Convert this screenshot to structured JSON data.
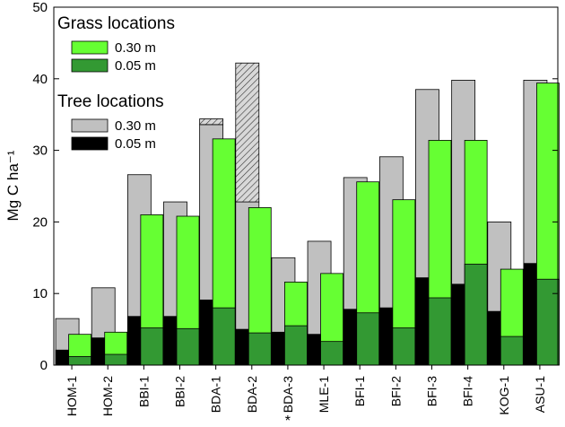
{
  "chart_data": {
    "type": "bar",
    "title": "",
    "xlabel": "",
    "ylabel": "Mg C ha⁻¹",
    "ylim": [
      0,
      50
    ],
    "yticks": [
      0,
      10,
      20,
      30,
      40,
      50
    ],
    "grid": false,
    "legend_placement": "top-left",
    "categories": [
      "HOM-1",
      "HOM-2",
      "BBI-1",
      "BBI-2",
      "BDA-1",
      "BDA-2",
      "BDA-3",
      "MLE-1",
      "BFI-1",
      "BFI-2",
      "BFI-3",
      "BFI-4",
      "KOG-1",
      "ASU-1"
    ],
    "category_notes": [
      "",
      "",
      "",
      "",
      "",
      "",
      "*",
      "",
      "",
      "",
      "",
      "",
      "",
      ""
    ],
    "legend_groups": [
      {
        "title": "Grass locations",
        "items": [
          {
            "label": "0.30 m",
            "color": "#66ff33"
          },
          {
            "label": "0.05 m",
            "color": "#339933"
          }
        ]
      },
      {
        "title": "Tree locations",
        "items": [
          {
            "label": "0.30 m",
            "color": "#c0c0c0"
          },
          {
            "label": "0.05 m",
            "color": "#000000"
          }
        ]
      }
    ],
    "series": [
      {
        "name": "Tree locations 0.30 m",
        "group": "tree",
        "depth": "0.30 m",
        "color": "#c0c0c0",
        "values": [
          6.5,
          10.8,
          26.6,
          22.8,
          33.6,
          22.8,
          15.0,
          17.3,
          26.2,
          29.1,
          38.5,
          39.8,
          20.0,
          39.8
        ]
      },
      {
        "name": "Tree locations 0.05 m",
        "group": "tree",
        "depth": "0.05 m",
        "color": "#000000",
        "values": [
          2.1,
          3.8,
          6.8,
          6.8,
          9.1,
          5.0,
          4.6,
          4.3,
          7.8,
          8.0,
          12.2,
          11.3,
          7.5,
          14.2
        ]
      },
      {
        "name": "Grass locations 0.30 m",
        "group": "grass",
        "depth": "0.30 m",
        "color": "#66ff33",
        "values": [
          4.3,
          4.6,
          21.0,
          20.8,
          31.6,
          22.0,
          11.6,
          12.8,
          25.6,
          23.1,
          31.4,
          31.4,
          13.4,
          39.4
        ]
      },
      {
        "name": "Grass locations 0.05 m",
        "group": "grass",
        "depth": "0.05 m",
        "color": "#339933",
        "values": [
          1.2,
          1.5,
          5.2,
          5.1,
          8.0,
          4.5,
          5.5,
          3.3,
          7.3,
          5.2,
          9.4,
          14.1,
          4.0,
          12.0
        ]
      }
    ],
    "hatched_extensions": [
      {
        "category": "BDA-1",
        "from": 33.6,
        "to": 34.4
      },
      {
        "category": "BDA-2",
        "from": 22.8,
        "to": 42.2
      }
    ]
  }
}
